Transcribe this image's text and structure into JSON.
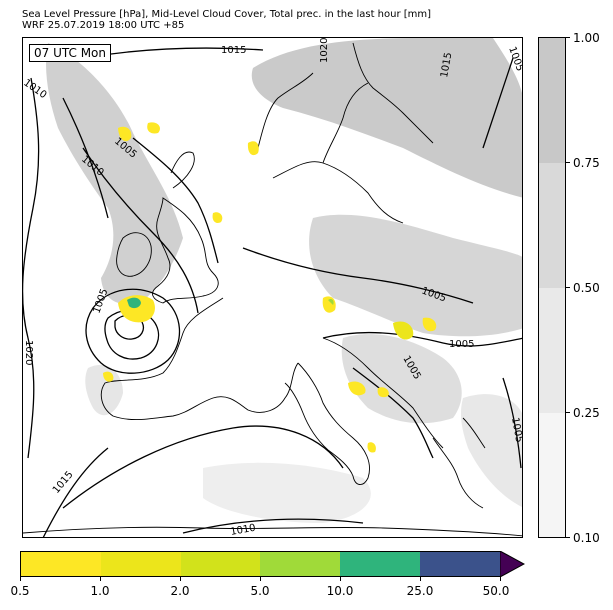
{
  "title": {
    "line1": "Sea Level Pressure [hPa], Mid-Level Cloud Cover, Total prec. in the last hour [mm]",
    "line2": "WRF 25.07.2019 18:00 UTC +85"
  },
  "time_label": "07 UTC Mon",
  "isobar_labels": [
    "1015",
    "1020",
    "1015",
    "1005",
    "1010",
    "1010",
    "1005",
    "1020",
    "1005",
    "1005",
    "1005",
    "1015",
    "1010",
    "1005"
  ],
  "cloud_colorbar": {
    "levels": [
      {
        "from": 0.1,
        "to": 0.25,
        "color": "#f5f5f5"
      },
      {
        "from": 0.25,
        "to": 0.5,
        "color": "#e9e9e9"
      },
      {
        "from": 0.5,
        "to": 0.75,
        "color": "#d9d9d9"
      },
      {
        "from": 0.75,
        "to": 1.0,
        "color": "#c8c8c8"
      }
    ],
    "tick_labels": [
      "0.10",
      "0.25",
      "0.50",
      "0.75",
      "1.00"
    ]
  },
  "precip_colorbar": {
    "colors": [
      "#fde725",
      "#ece51b",
      "#d2e21b",
      "#a0da39",
      "#2fb47c",
      "#3b528b"
    ],
    "extend_color": "#440154",
    "tick_labels": [
      "0.5",
      "1.0",
      "2.0",
      "5.0",
      "10.0",
      "25.0",
      "50.0"
    ]
  }
}
